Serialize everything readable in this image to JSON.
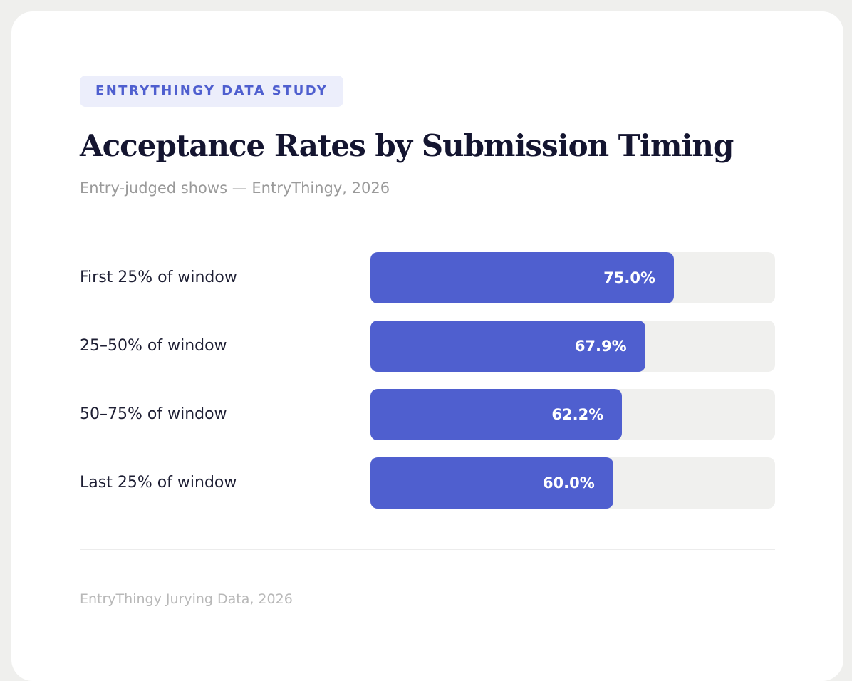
{
  "badge": "ENTRYTHINGY DATA STUDY",
  "footer": "EntryThingy Jurying Data, 2026",
  "colors": {
    "bar": "#4f5fcf",
    "track": "#f0f0ee",
    "badge_bg": "#eceefb"
  },
  "chart_data": {
    "type": "bar",
    "orientation": "horizontal",
    "title": "Acceptance Rates by Submission Timing",
    "subtitle": "Entry-judged shows — EntryThingy, 2026",
    "categories": [
      "First 25% of window",
      "25–50% of window",
      "50–75% of window",
      "Last 25% of window"
    ],
    "values": [
      75.0,
      67.9,
      62.2,
      60.0
    ],
    "value_labels": [
      "75.0%",
      "67.9%",
      "62.2%",
      "60.0%"
    ],
    "xlim": [
      0,
      100
    ],
    "grid": false
  }
}
